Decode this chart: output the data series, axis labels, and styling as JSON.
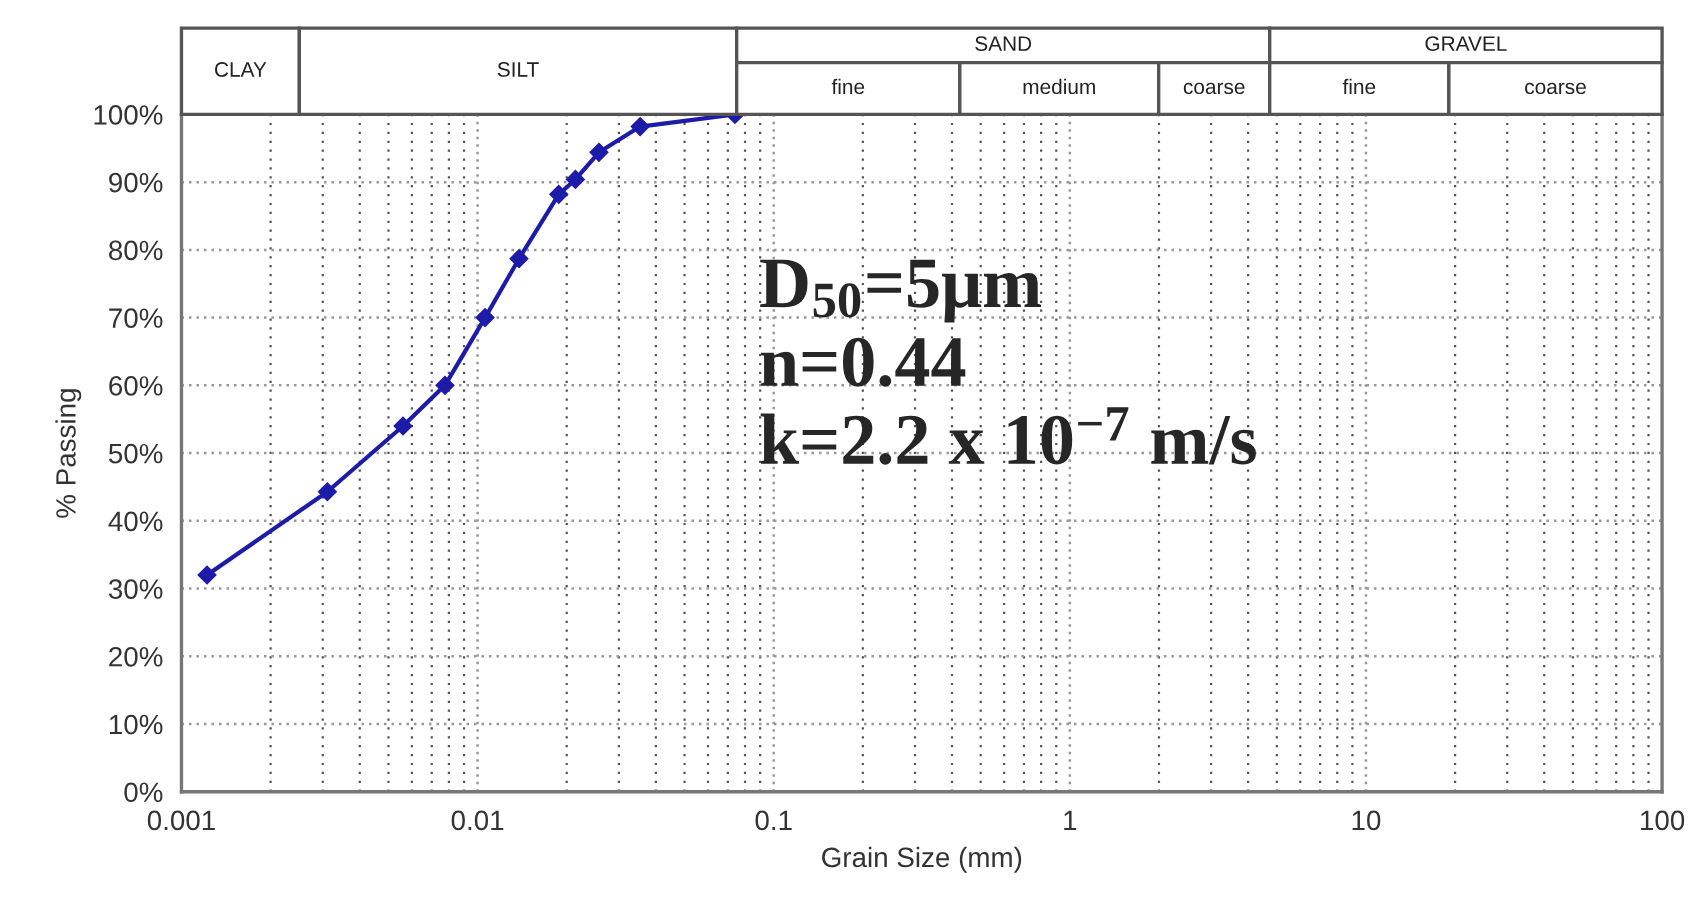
{
  "chart_data": [
    {
      "type": "line",
      "xlabel": "Grain Size (mm)",
      "ylabel": "% Passing",
      "x": [
        0.00122,
        0.00311,
        0.0056,
        0.00776,
        0.0106,
        0.0138,
        0.0188,
        0.0214,
        0.0257,
        0.0354,
        0.074
      ],
      "series": [
        {
          "color": "#1c1ca8",
          "values": [
            32,
            44.3,
            54,
            60,
            70,
            78.7,
            88.2,
            90.4,
            94.4,
            98.2,
            100
          ]
        }
      ],
      "log": "x",
      "xlim": [
        0.001,
        100
      ],
      "xticks": [
        0.001,
        0.01,
        0.1,
        1,
        10,
        100
      ],
      "ylim": [
        0,
        100
      ],
      "yticks": [
        {
          "value": 0,
          "label": "0%"
        },
        {
          "value": 10,
          "label": "10%"
        },
        {
          "value": 20,
          "label": "20%"
        },
        {
          "value": 30,
          "label": "30%"
        },
        {
          "value": 40,
          "label": "40%"
        },
        {
          "value": 50,
          "label": "50%"
        },
        {
          "value": 60,
          "label": "60%"
        },
        {
          "value": 70,
          "label": "70%"
        },
        {
          "value": 80,
          "label": "80%"
        },
        {
          "value": 90,
          "label": "90%"
        },
        {
          "value": 100,
          "label": "100%"
        }
      ],
      "grid": true,
      "marker": "diamond",
      "line_style": "solid",
      "annotations": [
        "D$_{50}$=5μm",
        "n=0.44",
        "k=2.2 x 10$^{−7}$ m/s"
      ]
    },
    {
      "type": "other",
      "annotations": [
        "CLAY",
        "SILT",
        "SAND",
        "GRAVEL",
        "fine",
        "medium",
        "coarse",
        "fine",
        "coarse"
      ]
    }
  ]
}
